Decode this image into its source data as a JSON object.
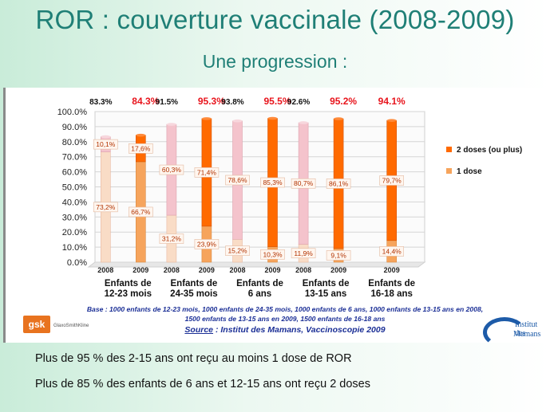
{
  "slide": {
    "title": "ROR : couverture vaccinale (2008-2009)",
    "subtitle": "Une progression :"
  },
  "chart_data": {
    "type": "bar",
    "stacked": true,
    "ylim": [
      0,
      100
    ],
    "yticks": [
      "0.0%",
      "10.0%",
      "20.0%",
      "30.0%",
      "40.0%",
      "50.0%",
      "60.0%",
      "70.0%",
      "80.0%",
      "90.0%",
      "100.0%"
    ],
    "legend_position": "right",
    "series": [
      {
        "name": "2 doses (ou plus)",
        "color": "#ff6a00"
      },
      {
        "name": "1 dose",
        "color": "#f6a45c"
      }
    ],
    "groups": [
      {
        "label": [
          "Enfants de",
          "12-23 mois"
        ],
        "bars": [
          {
            "year": "2008",
            "total": 83.3,
            "total_label": "83.3%",
            "one_dose": 73.2,
            "one_dose_label": "73,2%",
            "two_doses": 10.1,
            "two_doses_label": "10,1%"
          },
          {
            "year": "2009",
            "total": 84.3,
            "total_label": "84.3%",
            "one_dose": 66.7,
            "one_dose_label": "66,7%",
            "two_doses": 17.6,
            "two_doses_label": "17,6%"
          }
        ]
      },
      {
        "label": [
          "Enfants de",
          "24-35 mois"
        ],
        "bars": [
          {
            "year": "2008",
            "total": 91.5,
            "total_label": "91.5%",
            "one_dose": 31.2,
            "one_dose_label": "31,2%",
            "two_doses": 60.3,
            "two_doses_label": "60,3%"
          },
          {
            "year": "2009",
            "total": 95.3,
            "total_label": "95.3%",
            "one_dose": 23.9,
            "one_dose_label": "23,9%",
            "two_doses": 71.4,
            "two_doses_label": "71,4%"
          }
        ]
      },
      {
        "label": [
          "Enfants de",
          "6 ans"
        ],
        "bars": [
          {
            "year": "2008",
            "total": 93.8,
            "total_label": "93.8%",
            "one_dose": 15.2,
            "one_dose_label": "15,2%",
            "two_doses": 78.6,
            "two_doses_label": "78,6%"
          },
          {
            "year": "2009",
            "total": 95.5,
            "total_label": "95.5%",
            "one_dose": 10.3,
            "one_dose_label": "10,3%",
            "two_doses": 85.3,
            "two_doses_label": "85,3%"
          }
        ]
      },
      {
        "label": [
          "Enfants de",
          "13-15 ans"
        ],
        "bars": [
          {
            "year": "2008",
            "total": 92.6,
            "total_label": "92.6%",
            "one_dose": 11.9,
            "one_dose_label": "11,9%",
            "two_doses": 80.7,
            "two_doses_label": "80,7%"
          },
          {
            "year": "2009",
            "total": 95.2,
            "total_label": "95.2%",
            "one_dose": 9.1,
            "one_dose_label": "9,1%",
            "two_doses": 86.1,
            "two_doses_label": "86,1%"
          }
        ]
      },
      {
        "label": [
          "Enfants de",
          "16-18 ans"
        ],
        "bars": [
          {
            "year": "2009",
            "total": 94.1,
            "total_label": "94.1%",
            "one_dose": 14.4,
            "one_dose_label": "14,4%",
            "two_doses": 79.7,
            "two_doses_label": "79,7%"
          }
        ]
      }
    ],
    "colors": {
      "y2008_total": "#111111",
      "y2009_total": "#e8141c",
      "faded_two_doses": "#f4c3cc",
      "faded_one_dose": "#f9dcc6"
    }
  },
  "notes": {
    "base_line1": "Base : 1000 enfants de 12-23 mois, 1000 enfants de 24-35 mois, 1000 enfants de 6 ans, 1000 enfants de 13-15 ans en 2008,",
    "base_line2": "1500 enfants de 13-15 ans en 2009, 1500 enfants de 16-18 ans",
    "source_label": "Source",
    "source_text": " : Institut des Mamans, Vaccinoscopie 2009"
  },
  "logos": {
    "gsk": "gsk",
    "gsk_sub": "GlaxoSmithKline",
    "institut_line1": "Institut des",
    "institut_line2": "Mamans"
  },
  "footer": {
    "line1": "Plus de 95 % des 2-15 ans ont reçu au moins 1 dose de ROR",
    "line2": "Plus de 85 % des enfants de 6 ans et 12-15 ans ont reçu 2 doses"
  }
}
